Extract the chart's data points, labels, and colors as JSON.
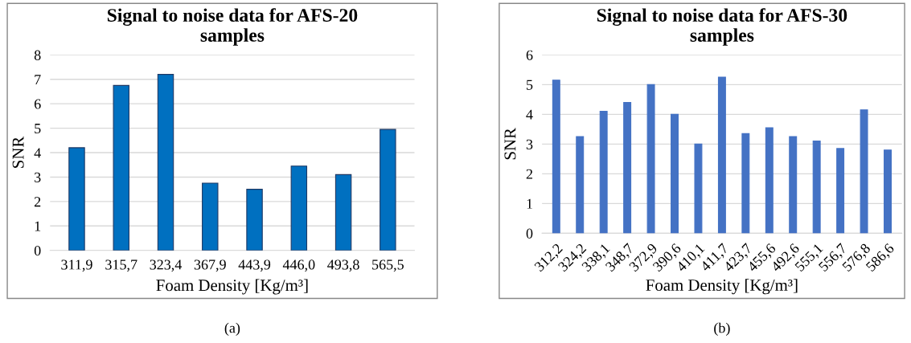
{
  "chart_data": [
    {
      "type": "bar",
      "title": "Signal to noise data for AFS-20\nsamples",
      "xlabel": "Foam Density [Kg/m³]",
      "ylabel": "SNR",
      "categories": [
        "311,9",
        "315,7",
        "323,4",
        "367,9",
        "443,9",
        "446,0",
        "493,8",
        "565,5"
      ],
      "values": [
        4.2,
        6.75,
        7.2,
        2.75,
        2.5,
        3.45,
        3.1,
        4.95
      ],
      "color": "#0070c0",
      "ylim": [
        0,
        8
      ],
      "yticks": [
        0,
        1,
        2,
        3,
        4,
        5,
        6,
        7,
        8
      ],
      "grid": "y",
      "annotations": [
        "(a)"
      ]
    },
    {
      "type": "bar",
      "title": "Signal to noise data for AFS-30\nsamples",
      "xlabel": "Foam Density [Kg/m³]",
      "ylabel": "SNR",
      "categories": [
        "312,2",
        "324,2",
        "338,1",
        "348,7",
        "372,9",
        "390,6",
        "410,1",
        "411,7",
        "423,7",
        "455,6",
        "492,6",
        "555,1",
        "556,7",
        "576,8",
        "586,6"
      ],
      "values": [
        5.15,
        3.25,
        4.1,
        4.4,
        5.0,
        4.0,
        3.0,
        5.25,
        3.35,
        3.55,
        3.25,
        3.1,
        2.85,
        4.15,
        2.8
      ],
      "color": "#4472c4",
      "ylim": [
        0,
        6
      ],
      "yticks": [
        0,
        1,
        2,
        3,
        4,
        5,
        6
      ],
      "grid": "y",
      "annotations": [
        "(b)"
      ]
    }
  ]
}
